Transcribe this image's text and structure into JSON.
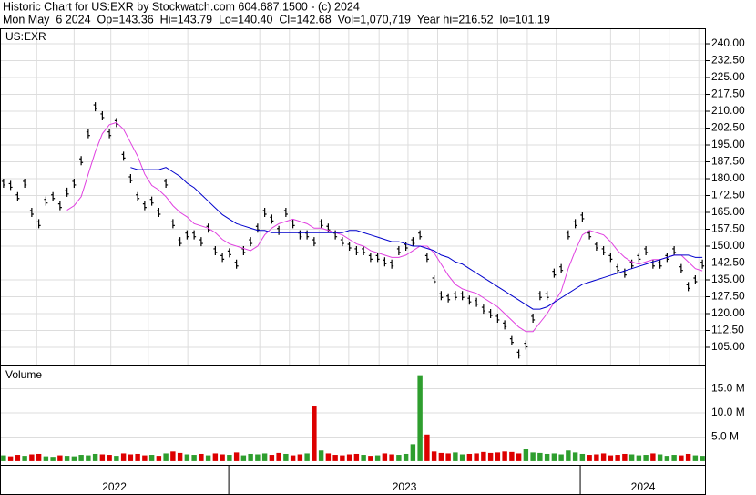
{
  "header": {
    "line1": "Historic Chart for US:EXR by Stockwatch.com 604.687.1500 - (c) 2024",
    "line2": "Mon May  6 2024  Op=143.36  Hi=143.79  Lo=140.40  Cl=142.68  Vol=1,070,719  Year hi=216.52  lo=101.19"
  },
  "chart_data": [
    {
      "type": "price",
      "title": "US:EXR",
      "xlim": [
        0,
        100
      ],
      "ylim": [
        97.3,
        246.9
      ],
      "yticks": [
        {
          "value": 240,
          "label": "240.00"
        },
        {
          "value": 232.5,
          "label": "232.50"
        },
        {
          "value": 225,
          "label": "225.00"
        },
        {
          "value": 217.5,
          "label": "217.50"
        },
        {
          "value": 210,
          "label": "210.00"
        },
        {
          "value": 202.5,
          "label": "202.50"
        },
        {
          "value": 195,
          "label": "195.00"
        },
        {
          "value": 187.5,
          "label": "187.50"
        },
        {
          "value": 180,
          "label": "180.00"
        },
        {
          "value": 172.5,
          "label": "172.50"
        },
        {
          "value": 165,
          "label": "165.00"
        },
        {
          "value": 157.5,
          "label": "157.50"
        },
        {
          "value": 150,
          "label": "150.00"
        },
        {
          "value": 142.5,
          "label": "142.50"
        },
        {
          "value": 135,
          "label": "135.00"
        },
        {
          "value": 127.5,
          "label": "127.50"
        },
        {
          "value": 120,
          "label": "120.00"
        },
        {
          "value": 112.5,
          "label": "112.50"
        },
        {
          "value": 105,
          "label": "105.00"
        }
      ],
      "xgrid": [
        5.2,
        10.5,
        15.7,
        21,
        26.6,
        36.8,
        41,
        45.2,
        49.4,
        53.7,
        57.8,
        62,
        66.3,
        70.5,
        74.7,
        78.8,
        86.5,
        90.6,
        94.8,
        99
      ],
      "grid": true,
      "series": [
        {
          "color": "#000000",
          "values": [
            178,
            177,
            172,
            178,
            165,
            160,
            170,
            172,
            168,
            174,
            178,
            188,
            200,
            212,
            208,
            200,
            205,
            190,
            180,
            172,
            168,
            170,
            165,
            178,
            160,
            152,
            155,
            155,
            152,
            158,
            148,
            145,
            147,
            142,
            148,
            152,
            158,
            165,
            162,
            157,
            165,
            160,
            155,
            155,
            152,
            160,
            158,
            155,
            152,
            150,
            148,
            148,
            145,
            145,
            143,
            142,
            148,
            150,
            152,
            155,
            145,
            135,
            128,
            127,
            128,
            128,
            126,
            125,
            122,
            120,
            118,
            115,
            108,
            102,
            106,
            118,
            128,
            128,
            138,
            140,
            155,
            160,
            163,
            155,
            150,
            148,
            145,
            140,
            138,
            142,
            145,
            148,
            142,
            142,
            145,
            148,
            140,
            132,
            135,
            142
          ]
        },
        {
          "color": "#e040e0",
          "values": [
            null,
            null,
            null,
            null,
            null,
            null,
            null,
            null,
            null,
            166,
            168,
            172,
            182,
            192,
            200,
            204,
            205,
            202,
            196,
            190,
            182,
            177,
            175,
            172,
            168,
            165,
            163,
            160,
            159,
            158,
            156,
            153,
            151,
            150,
            149,
            148,
            150,
            155,
            158,
            160,
            161,
            162,
            161,
            160,
            158,
            158,
            157,
            156,
            155,
            153,
            151,
            150,
            148,
            147,
            146,
            145,
            145,
            146,
            148,
            150,
            150,
            147,
            142,
            137,
            133,
            131,
            130,
            129,
            127,
            125,
            123,
            120,
            117,
            114,
            112,
            112,
            116,
            120,
            125,
            130,
            140,
            148,
            155,
            157,
            156,
            155,
            152,
            148,
            145,
            143,
            142,
            143,
            144,
            144,
            145,
            146,
            146,
            143,
            140,
            139
          ]
        },
        {
          "color": "#0000cc",
          "values": [
            null,
            null,
            null,
            null,
            null,
            null,
            null,
            null,
            null,
            null,
            null,
            null,
            null,
            null,
            null,
            null,
            null,
            null,
            185,
            184,
            184,
            184,
            184,
            185,
            183,
            181,
            178,
            176,
            173,
            170,
            167,
            164,
            162,
            160,
            159,
            158,
            157,
            157,
            156,
            156,
            156,
            156,
            156,
            156,
            156,
            156,
            156,
            156,
            156,
            157,
            157,
            156,
            155,
            154,
            153,
            152,
            152,
            151,
            150,
            150,
            149,
            148,
            146,
            145,
            143,
            142,
            140,
            138,
            136,
            134,
            132,
            130,
            128,
            126,
            124,
            122,
            122,
            123,
            125,
            127,
            129,
            131,
            133,
            134,
            135,
            136,
            137,
            138,
            139,
            140,
            141,
            142,
            143,
            144,
            145,
            146,
            146,
            146,
            145,
            145
          ]
        }
      ]
    },
    {
      "type": "volume",
      "title": "Volume",
      "xlim": [
        0,
        100
      ],
      "ylim": [
        -0.77,
        20
      ],
      "yticks": [
        {
          "value": 15,
          "label": "15.0 M"
        },
        {
          "value": 10,
          "label": "10.0 M"
        },
        {
          "value": 5,
          "label": "5.0 M"
        }
      ],
      "up_color": "#2e9e2e",
      "down_color": "#dd0000",
      "values": [
        1.2,
        1.0,
        1.3,
        1.1,
        1.4,
        1.5,
        1.0,
        0.9,
        1.2,
        1.1,
        1.0,
        1.3,
        1.2,
        1.5,
        1.4,
        1.3,
        1.1,
        1.6,
        1.4,
        1.5,
        1.2,
        1.3,
        1.1,
        1.6,
        2.0,
        1.7,
        1.4,
        1.3,
        1.5,
        1.2,
        1.6,
        1.4,
        1.3,
        1.8,
        1.2,
        1.5,
        1.4,
        1.6,
        1.3,
        1.7,
        1.5,
        1.2,
        1.4,
        1.6,
        11.5,
        2.2,
        1.6,
        1.3,
        1.2,
        1.4,
        1.5,
        1.3,
        1.1,
        1.2,
        1.6,
        1.4,
        1.3,
        1.5,
        3.5,
        17.8,
        5.5,
        2.0,
        1.7,
        1.6,
        1.8,
        1.4,
        1.5,
        1.6,
        1.9,
        1.7,
        1.8,
        2.0,
        1.9,
        1.6,
        2.5,
        1.8,
        1.7,
        1.5,
        1.6,
        1.4,
        2.2,
        1.8,
        1.5,
        1.3,
        1.4,
        1.6,
        1.2,
        1.3,
        1.5,
        1.4,
        1.2,
        1.3,
        1.6,
        1.4,
        1.1,
        1.3,
        1.2,
        1.5,
        1.2,
        1.1
      ]
    },
    {
      "type": "dates",
      "periods": [
        {
          "label": "2022",
          "start": 0,
          "end": 32.4
        },
        {
          "label": "2023",
          "start": 32.4,
          "end": 82.2
        },
        {
          "label": "2024",
          "start": 82.2,
          "end": 100
        }
      ]
    }
  ]
}
